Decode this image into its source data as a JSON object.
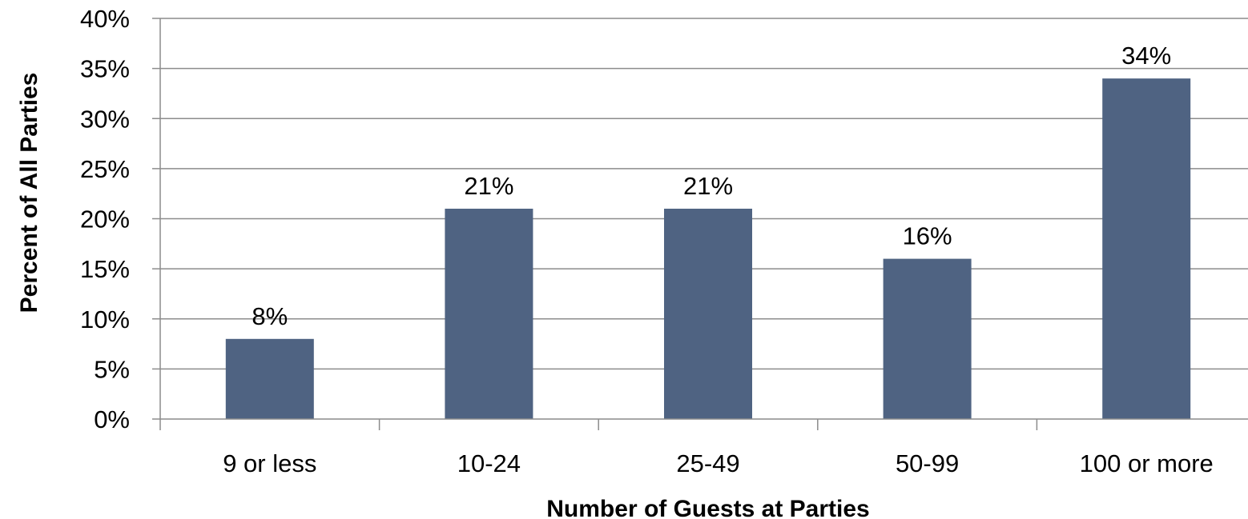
{
  "chart_data": {
    "type": "bar",
    "title": "",
    "xlabel": "Number of Guests at Parties",
    "ylabel": "Percent of All Parties",
    "categories": [
      "9 or less",
      "10-24",
      "25-49",
      "50-99",
      "100 or more"
    ],
    "values": [
      8,
      21,
      21,
      16,
      34
    ],
    "data_labels": [
      "8%",
      "21%",
      "21%",
      "16%",
      "34%"
    ],
    "ylim": [
      0,
      40
    ],
    "yticks": [
      0,
      5,
      10,
      15,
      20,
      25,
      30,
      35,
      40
    ],
    "ytick_labels": [
      "0%",
      "5%",
      "10%",
      "15%",
      "20%",
      "25%",
      "30%",
      "35%",
      "40%"
    ],
    "grid": true,
    "legend": "none",
    "bar_color": "#4F6382",
    "grid_color": "#8C8C8C"
  }
}
